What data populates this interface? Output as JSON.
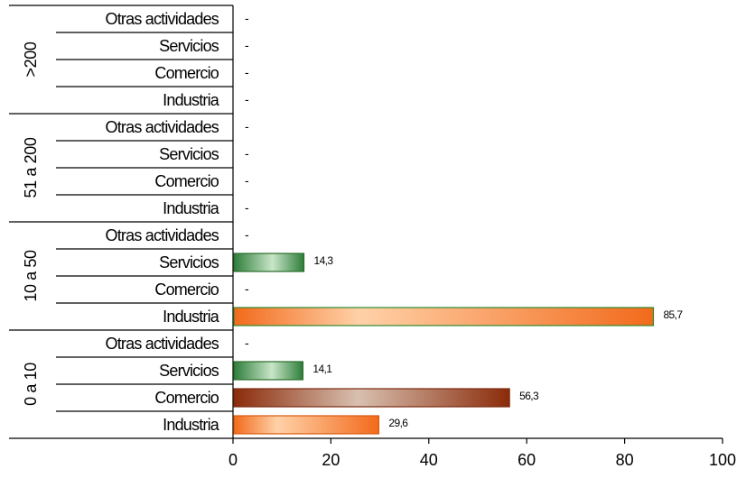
{
  "chart_data": {
    "type": "bar",
    "orientation": "horizontal",
    "title": "",
    "xlabel": "",
    "ylabel": "",
    "xlim": [
      0,
      100
    ],
    "x_ticks": [
      0,
      20,
      40,
      60,
      80,
      100
    ],
    "x_tick_labels": [
      "0",
      "20",
      "40",
      "60",
      "80",
      "100"
    ],
    "grid": false,
    "legend": "none",
    "groups": [
      {
        "name": ">200",
        "categories": [
          {
            "name": "Otras actividades",
            "value": null,
            "label": "-"
          },
          {
            "name": "Servicios",
            "value": null,
            "label": "-"
          },
          {
            "name": "Comercio",
            "value": null,
            "label": "-"
          },
          {
            "name": "Industria",
            "value": null,
            "label": "-"
          }
        ]
      },
      {
        "name": "51 a 200",
        "categories": [
          {
            "name": "Otras actividades",
            "value": null,
            "label": "-"
          },
          {
            "name": "Servicios",
            "value": null,
            "label": "-"
          },
          {
            "name": "Comercio",
            "value": null,
            "label": "-"
          },
          {
            "name": "Industria",
            "value": null,
            "label": "-"
          }
        ]
      },
      {
        "name": "10 a 50",
        "categories": [
          {
            "name": "Otras actividades",
            "value": null,
            "label": "-"
          },
          {
            "name": "Servicios",
            "value": 14.3,
            "label": "14,3"
          },
          {
            "name": "Comercio",
            "value": null,
            "label": "-"
          },
          {
            "name": "Industria",
            "value": 85.7,
            "label": "85,7"
          }
        ]
      },
      {
        "name": "0 a 10",
        "categories": [
          {
            "name": "Otras actividades",
            "value": null,
            "label": "-"
          },
          {
            "name": "Servicios",
            "value": 14.1,
            "label": "14,1"
          },
          {
            "name": "Comercio",
            "value": 56.3,
            "label": "56,3"
          },
          {
            "name": "Industria",
            "value": 29.6,
            "label": "29,6"
          }
        ]
      }
    ],
    "colors": {
      "Industria": {
        "light": "#ffd1a8",
        "dark": "#f26a1b",
        "border": "#d9590f"
      },
      "Comercio": {
        "light": "#d8c0b0",
        "dark": "#8b2b0a",
        "border": "#7a2a0e"
      },
      "Servicios": {
        "light": "#c8e6c8",
        "dark": "#2e7d3a",
        "border": "#2b6b2b"
      },
      "axis": "#000000",
      "industria_10a50_border": "#2e8b2e"
    }
  }
}
